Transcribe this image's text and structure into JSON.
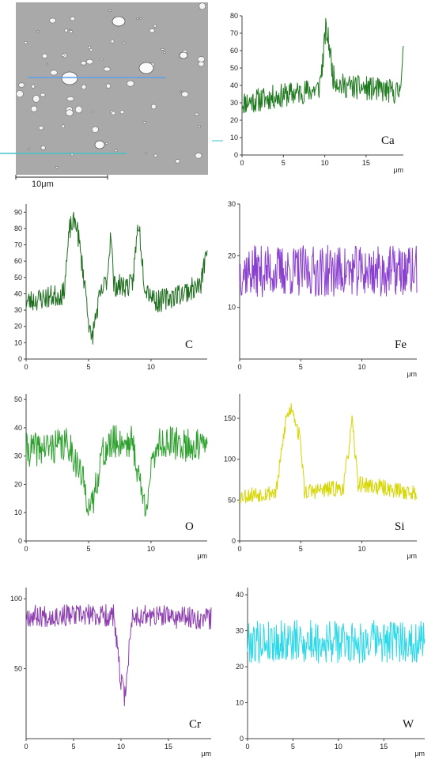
{
  "micrograph": {
    "scale_bar_label": "10μm"
  },
  "chart_data": [
    {
      "type": "line",
      "element": "Ca",
      "color": "#1f7a1f",
      "xlabel": "μm",
      "xlim": [
        0,
        19.5
      ],
      "ylim": [
        0,
        80
      ],
      "xticks": [
        0,
        5,
        10,
        15
      ],
      "yticks": [
        0,
        10,
        20,
        30,
        40,
        50,
        60,
        70,
        80
      ],
      "profile": [
        [
          0,
          30
        ],
        [
          9.3,
          38
        ],
        [
          9.8,
          55
        ],
        [
          10.1,
          72
        ],
        [
          10.5,
          65
        ],
        [
          11,
          45
        ],
        [
          12,
          40
        ],
        [
          19,
          36
        ],
        [
          19.5,
          60
        ]
      ],
      "noise": 7,
      "seed": 11
    },
    {
      "type": "line",
      "element": "C",
      "color": "#1f6e1f",
      "xlabel": "",
      "xlim": [
        0,
        14.5
      ],
      "ylim": [
        0,
        95
      ],
      "xticks": [
        0,
        5,
        10
      ],
      "yticks": [
        0,
        10,
        20,
        30,
        40,
        50,
        60,
        70,
        80,
        90
      ],
      "profile": [
        [
          0,
          35
        ],
        [
          3,
          40
        ],
        [
          3.5,
          80
        ],
        [
          4,
          85
        ],
        [
          4.8,
          40
        ],
        [
          5.2,
          10
        ],
        [
          5.8,
          35
        ],
        [
          6.5,
          50
        ],
        [
          6.8,
          80
        ],
        [
          7,
          45
        ],
        [
          8.5,
          45
        ],
        [
          9.0,
          85
        ],
        [
          9.5,
          45
        ],
        [
          10.5,
          35
        ],
        [
          14,
          45
        ],
        [
          14.5,
          70
        ]
      ],
      "noise": 7,
      "seed": 23
    },
    {
      "type": "line",
      "element": "Fe",
      "color": "#8a3fd0",
      "xlabel": "μm",
      "xlim": [
        0,
        14.5
      ],
      "ylim": [
        0,
        30
      ],
      "xticks": [
        0,
        5,
        10
      ],
      "yticks": [
        10,
        20,
        30
      ],
      "profile": [
        [
          0,
          17
        ],
        [
          14.5,
          17
        ]
      ],
      "noise": 5,
      "seed": 37
    },
    {
      "type": "line",
      "element": "O",
      "color": "#2ea02e",
      "xlabel": "μm",
      "xlim": [
        0,
        14.5
      ],
      "ylim": [
        0,
        52
      ],
      "xticks": [
        0,
        5,
        10
      ],
      "yticks": [
        0,
        10,
        20,
        30,
        40,
        50
      ],
      "profile": [
        [
          0,
          32
        ],
        [
          3.5,
          34
        ],
        [
          4.5,
          22
        ],
        [
          5.2,
          10
        ],
        [
          6,
          30
        ],
        [
          7,
          35
        ],
        [
          8.5,
          35
        ],
        [
          9.5,
          12
        ],
        [
          10.5,
          35
        ],
        [
          14.5,
          33
        ]
      ],
      "noise": 6,
      "seed": 41
    },
    {
      "type": "line",
      "element": "Si",
      "color": "#d6d600",
      "xlabel": "μm",
      "xlim": [
        0,
        14.5
      ],
      "ylim": [
        0,
        180
      ],
      "xticks": [
        0,
        5,
        10
      ],
      "yticks": [
        0,
        50,
        100,
        150
      ],
      "profile": [
        [
          0,
          55
        ],
        [
          3,
          60
        ],
        [
          3.8,
          150
        ],
        [
          4.3,
          165
        ],
        [
          5,
          120
        ],
        [
          5.3,
          60
        ],
        [
          8.5,
          65
        ],
        [
          9.2,
          145
        ],
        [
          9.7,
          70
        ],
        [
          14.5,
          58
        ]
      ],
      "noise": 10,
      "seed": 53
    },
    {
      "type": "line",
      "element": "Cr",
      "color": "#8d3fb0",
      "xlabel": "μm",
      "xlim": [
        0,
        19.5
      ],
      "ylim": [
        0,
        108
      ],
      "xticks": [
        0,
        5,
        10,
        15
      ],
      "yticks": [
        50,
        100
      ],
      "profile": [
        [
          0,
          88
        ],
        [
          9.2,
          88
        ],
        [
          9.5,
          70
        ],
        [
          10,
          40
        ],
        [
          10.4,
          30
        ],
        [
          10.8,
          60
        ],
        [
          11.2,
          88
        ],
        [
          19.5,
          86
        ]
      ],
      "noise": 8,
      "seed": 67
    },
    {
      "type": "line",
      "element": "W",
      "color": "#2dd9e8",
      "xlabel": "μm",
      "xlim": [
        0,
        19.5
      ],
      "ylim": [
        0,
        42
      ],
      "xticks": [
        0,
        5,
        10,
        15
      ],
      "yticks": [
        0,
        10,
        20,
        30,
        40
      ],
      "profile": [
        [
          0,
          27
        ],
        [
          19.5,
          27
        ]
      ],
      "noise": 6,
      "seed": 79
    }
  ]
}
